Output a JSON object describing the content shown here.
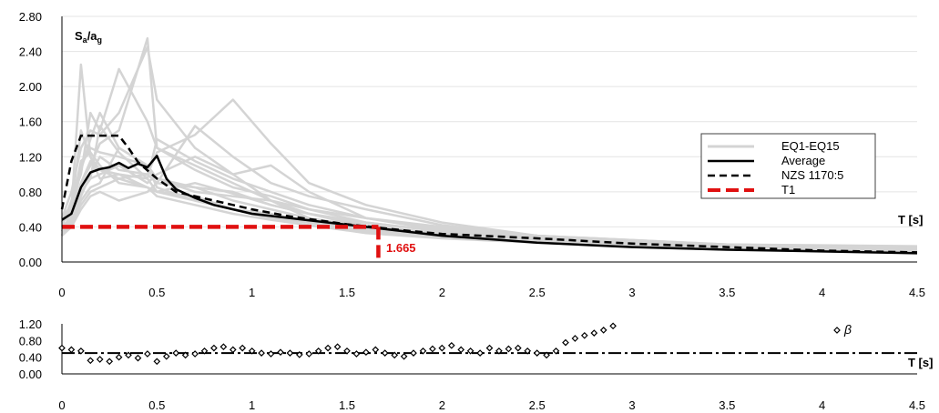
{
  "chart_data": [
    {
      "type": "line",
      "ylabel_main": "S",
      "ylabel_sub1": "a",
      "ylabel_slash": "/a",
      "ylabel_sub2": "g",
      "xlabel": "T [s]",
      "xlim": [
        0,
        4.5
      ],
      "ylim": [
        0,
        2.8
      ],
      "x_ticks": [
        "0",
        "0.5",
        "1",
        "1.5",
        "2",
        "2.5",
        "3",
        "3.5",
        "4",
        "4.5"
      ],
      "y_ticks": [
        "0.00",
        "0.40",
        "0.80",
        "1.20",
        "1.60",
        "2.00",
        "2.40",
        "2.80"
      ],
      "grid": "horizontal",
      "legend_position": "right",
      "legend": [
        "EQ1-EQ15",
        "Average",
        "NZS 1170:5",
        "T1"
      ],
      "colors": {
        "records": "#d4d4d4",
        "average": "#000000",
        "code": "#000000",
        "t1": "#e01010"
      },
      "t1_value": 1.665,
      "t1_label": "1.665",
      "t1_level": 0.4,
      "average": {
        "x": [
          0,
          0.05,
          0.1,
          0.15,
          0.2,
          0.25,
          0.3,
          0.35,
          0.4,
          0.45,
          0.5,
          0.55,
          0.6,
          0.7,
          0.8,
          0.9,
          1.0,
          1.2,
          1.4,
          1.6,
          1.8,
          2.0,
          2.5,
          3.0,
          3.5,
          4.0,
          4.5
        ],
        "y": [
          0.48,
          0.55,
          0.85,
          1.02,
          1.06,
          1.08,
          1.13,
          1.07,
          1.12,
          1.08,
          1.21,
          0.95,
          0.83,
          0.73,
          0.65,
          0.6,
          0.55,
          0.5,
          0.45,
          0.4,
          0.35,
          0.3,
          0.22,
          0.17,
          0.14,
          0.12,
          0.1
        ]
      },
      "code_spectrum": {
        "x": [
          0,
          0.05,
          0.1,
          0.15,
          0.2,
          0.25,
          0.3,
          0.35,
          0.4,
          0.5,
          0.6,
          0.8,
          1.0,
          1.2,
          1.5,
          1.8,
          2.0,
          2.5,
          3.0,
          3.5,
          4.0,
          4.5
        ],
        "y": [
          0.6,
          1.15,
          1.44,
          1.44,
          1.44,
          1.44,
          1.44,
          1.3,
          1.14,
          0.95,
          0.8,
          0.7,
          0.6,
          0.52,
          0.43,
          0.36,
          0.32,
          0.27,
          0.21,
          0.17,
          0.13,
          0.11
        ]
      },
      "records": [
        {
          "y": [
            0.3,
            0.6,
            2.25,
            1.2,
            0.95,
            1.0,
            0.85,
            0.8,
            0.75,
            0.6,
            0.55,
            0.45,
            0.4,
            0.3,
            0.25,
            0.2,
            0.15,
            0.12
          ]
        },
        {
          "y": [
            0.5,
            0.8,
            1.3,
            1.5,
            1.45,
            1.7,
            2.45,
            1.85,
            1.3,
            1.0,
            0.7,
            0.55,
            0.45,
            0.35,
            0.25,
            0.2,
            0.16,
            0.14
          ]
        },
        {
          "y": [
            0.4,
            0.7,
            1.0,
            1.7,
            1.5,
            2.2,
            1.6,
            1.3,
            1.1,
            0.9,
            0.7,
            0.5,
            0.4,
            0.3,
            0.22,
            0.18,
            0.15,
            0.12
          ]
        },
        {
          "y": [
            0.35,
            0.55,
            0.9,
            1.1,
            1.35,
            1.5,
            2.55,
            1.3,
            1.05,
            0.85,
            0.75,
            0.6,
            0.5,
            0.38,
            0.3,
            0.22,
            0.18,
            0.15
          ]
        },
        {
          "y": [
            0.3,
            0.5,
            0.75,
            1.0,
            1.2,
            1.05,
            1.0,
            1.25,
            1.45,
            1.85,
            1.35,
            0.9,
            0.65,
            0.45,
            0.3,
            0.24,
            0.2,
            0.16
          ]
        },
        {
          "y": [
            0.45,
            0.6,
            1.5,
            1.2,
            1.05,
            0.95,
            1.0,
            0.9,
            0.85,
            0.7,
            0.6,
            0.5,
            0.38,
            0.3,
            0.25,
            0.2,
            0.16,
            0.14
          ]
        },
        {
          "y": [
            0.4,
            0.5,
            0.8,
            0.95,
            1.0,
            1.1,
            0.9,
            1.0,
            1.2,
            1.0,
            1.1,
            0.8,
            0.5,
            0.4,
            0.3,
            0.25,
            0.2,
            0.18
          ]
        },
        {
          "y": [
            0.35,
            0.45,
            0.7,
            0.85,
            0.9,
            1.3,
            1.1,
            0.95,
            0.8,
            0.75,
            0.7,
            0.6,
            0.45,
            0.35,
            0.28,
            0.22,
            0.18,
            0.15
          ]
        },
        {
          "y": [
            0.5,
            0.65,
            1.1,
            1.3,
            1.25,
            1.2,
            1.1,
            0.95,
            0.85,
            0.8,
            0.65,
            0.55,
            0.4,
            0.33,
            0.25,
            0.2,
            0.17,
            0.14
          ]
        },
        {
          "y": [
            0.3,
            0.4,
            0.6,
            0.75,
            0.8,
            0.7,
            0.8,
            0.9,
            1.55,
            1.2,
            0.9,
            0.75,
            0.6,
            0.42,
            0.3,
            0.25,
            0.2,
            0.17
          ]
        },
        {
          "y": [
            0.45,
            0.55,
            1.05,
            1.4,
            1.7,
            1.3,
            1.1,
            0.85,
            0.7,
            0.6,
            0.5,
            0.45,
            0.35,
            0.28,
            0.22,
            0.18,
            0.15,
            0.13
          ]
        },
        {
          "y": [
            0.4,
            0.5,
            0.9,
            1.15,
            1.05,
            1.0,
            0.95,
            1.4,
            1.15,
            0.95,
            0.8,
            0.65,
            0.5,
            0.36,
            0.27,
            0.22,
            0.18,
            0.16
          ]
        },
        {
          "y": [
            0.35,
            0.5,
            0.8,
            0.95,
            1.55,
            1.25,
            0.95,
            0.8,
            0.7,
            0.6,
            0.5,
            0.45,
            0.36,
            0.3,
            0.24,
            0.2,
            0.16,
            0.14
          ]
        },
        {
          "y": [
            0.5,
            0.6,
            1.15,
            1.25,
            1.1,
            0.9,
            0.85,
            0.8,
            0.9,
            0.78,
            0.65,
            0.55,
            0.42,
            0.32,
            0.26,
            0.21,
            0.17,
            0.15
          ]
        },
        {
          "y": [
            0.3,
            0.45,
            0.65,
            0.8,
            0.85,
            0.95,
            0.85,
            0.75,
            0.65,
            0.55,
            0.48,
            0.42,
            0.33,
            0.27,
            0.22,
            0.18,
            0.15,
            0.12
          ]
        }
      ],
      "records_x": [
        0,
        0.05,
        0.1,
        0.15,
        0.2,
        0.3,
        0.45,
        0.5,
        0.7,
        0.9,
        1.1,
        1.3,
        1.6,
        2.0,
        2.5,
        3.0,
        3.5,
        4.5
      ]
    },
    {
      "type": "scatter",
      "xlabel": "T [s]",
      "xlim": [
        0,
        4.5
      ],
      "ylim": [
        0,
        1.2
      ],
      "x_ticks": [
        "0",
        "0.5",
        "1",
        "1.5",
        "2",
        "2.5",
        "3",
        "3.5",
        "4",
        "4.5"
      ],
      "y_ticks": [
        "0.00",
        "0.40",
        "0.80",
        "1.20"
      ],
      "legend": [
        "β"
      ],
      "mean_line": 0.5,
      "beta": {
        "x": [
          0,
          0.05,
          0.1,
          0.15,
          0.2,
          0.25,
          0.3,
          0.35,
          0.4,
          0.45,
          0.5,
          0.55,
          0.6,
          0.65,
          0.7,
          0.75,
          0.8,
          0.85,
          0.9,
          0.95,
          1.0,
          1.05,
          1.1,
          1.15,
          1.2,
          1.25,
          1.3,
          1.35,
          1.4,
          1.45,
          1.5,
          1.55,
          1.6,
          1.65,
          1.7,
          1.75,
          1.8,
          1.85,
          1.9,
          1.95,
          2.0,
          2.05,
          2.1,
          2.15,
          2.2,
          2.25,
          2.3,
          2.35,
          2.4,
          2.45,
          2.5,
          2.55,
          2.6,
          2.65,
          2.7,
          2.75,
          2.8,
          2.85,
          2.9
        ],
        "y": [
          0.62,
          0.58,
          0.55,
          0.32,
          0.35,
          0.3,
          0.4,
          0.45,
          0.38,
          0.48,
          0.3,
          0.42,
          0.5,
          0.45,
          0.48,
          0.55,
          0.62,
          0.65,
          0.58,
          0.62,
          0.55,
          0.5,
          0.48,
          0.52,
          0.5,
          0.46,
          0.48,
          0.55,
          0.62,
          0.65,
          0.55,
          0.48,
          0.52,
          0.58,
          0.5,
          0.45,
          0.42,
          0.5,
          0.55,
          0.6,
          0.62,
          0.68,
          0.58,
          0.55,
          0.5,
          0.62,
          0.55,
          0.6,
          0.62,
          0.55,
          0.5,
          0.45,
          0.55,
          0.75,
          0.85,
          0.92,
          0.98,
          1.05,
          1.15
        ]
      }
    }
  ]
}
